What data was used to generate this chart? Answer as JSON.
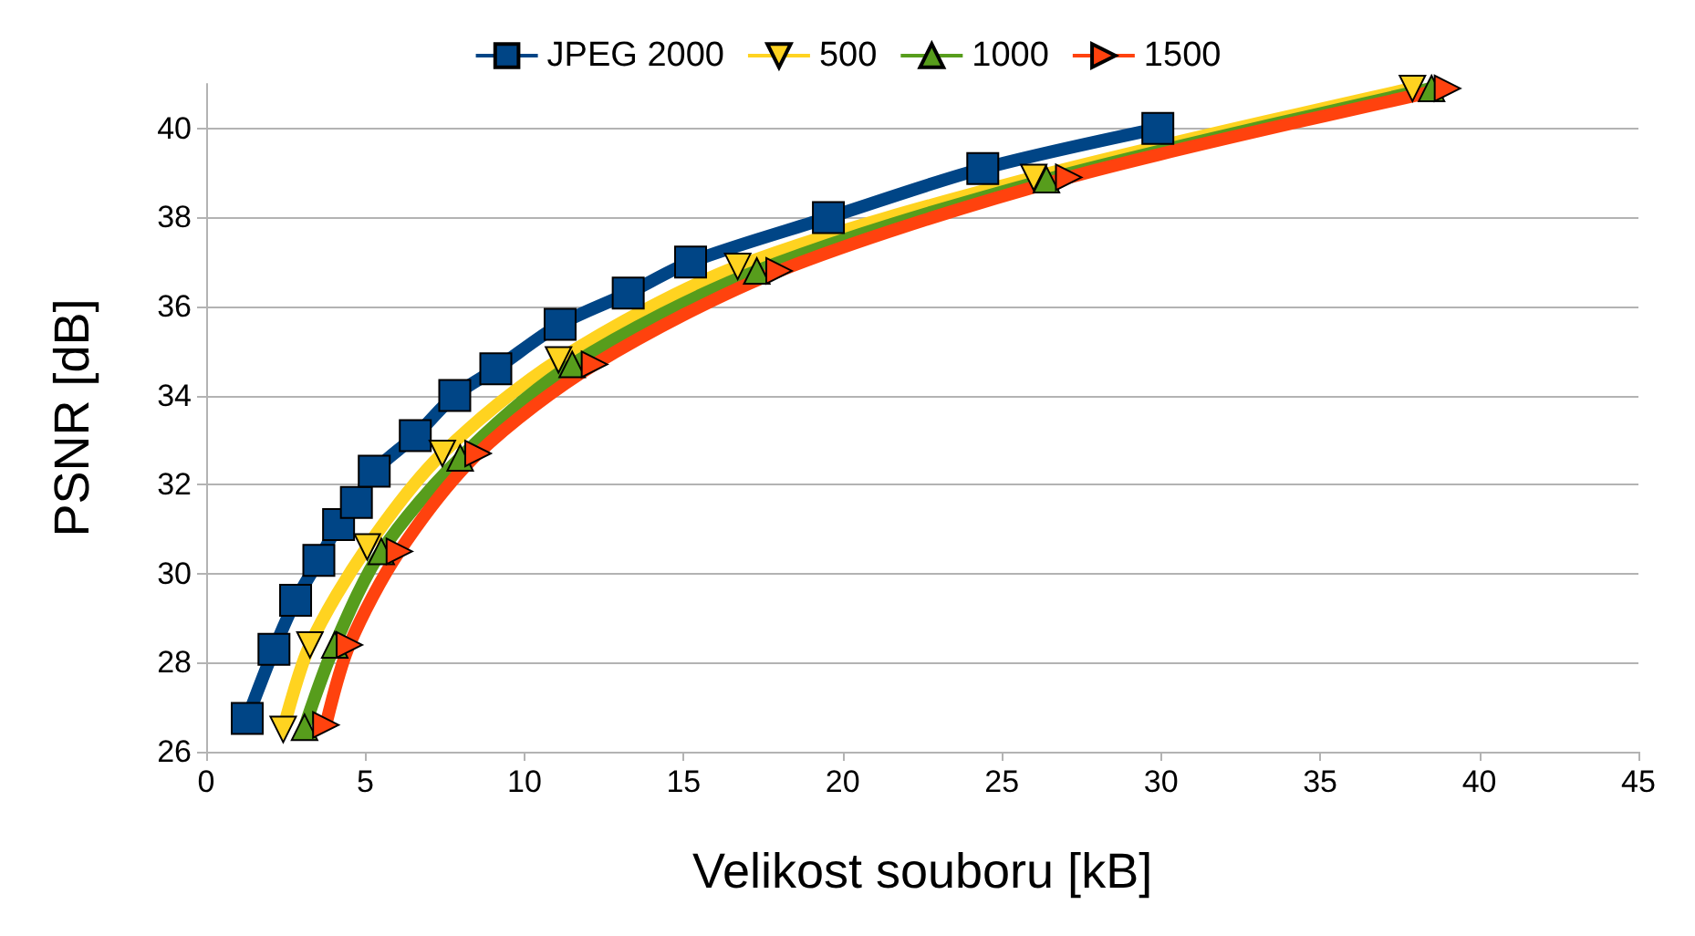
{
  "chart_data": {
    "type": "line",
    "xlabel": "Velikost souboru [kB]",
    "ylabel": "PSNR [dB]",
    "xlim": [
      0,
      45
    ],
    "xticks": [
      0,
      5,
      10,
      15,
      20,
      25,
      30,
      35,
      40,
      45
    ],
    "ylim": [
      26,
      41
    ],
    "yticks": [
      26,
      28,
      30,
      32,
      34,
      36,
      38,
      40
    ],
    "grid": "y",
    "legend": "top",
    "series": [
      {
        "name": "JPEG 2000",
        "color": "#004586",
        "marker": "square",
        "x": [
          1.29,
          2.13,
          2.81,
          3.54,
          4.16,
          4.72,
          5.28,
          6.57,
          7.81,
          9.1,
          11.12,
          13.26,
          15.22,
          19.55,
          24.4,
          29.9
        ],
        "values": [
          26.75,
          28.3,
          29.4,
          30.3,
          31.1,
          31.6,
          32.3,
          33.1,
          34.0,
          34.6,
          35.6,
          36.3,
          37.0,
          38.0,
          39.1,
          40.0
        ]
      },
      {
        "name": "500",
        "color": "#ffd320",
        "marker": "triangle-down",
        "x": [
          2.42,
          3.26,
          5.06,
          7.42,
          11.07,
          16.7,
          26.0,
          37.9
        ],
        "values": [
          26.5,
          28.4,
          30.6,
          32.7,
          34.8,
          36.9,
          38.9,
          40.9
        ]
      },
      {
        "name": "1000",
        "color": "#579d1c",
        "marker": "triangle",
        "x": [
          3.09,
          4.04,
          5.5,
          7.98,
          11.5,
          17.3,
          26.4,
          38.5
        ],
        "values": [
          26.55,
          28.4,
          30.5,
          32.6,
          34.7,
          36.8,
          38.85,
          40.9
        ]
      },
      {
        "name": "1500",
        "color": "#ff420e",
        "marker": "triangle-right",
        "x": [
          3.76,
          4.5,
          6.07,
          8.54,
          12.2,
          18.0,
          27.1,
          39.0
        ],
        "values": [
          26.6,
          28.4,
          30.5,
          32.7,
          34.7,
          36.8,
          38.9,
          40.9
        ]
      }
    ]
  }
}
